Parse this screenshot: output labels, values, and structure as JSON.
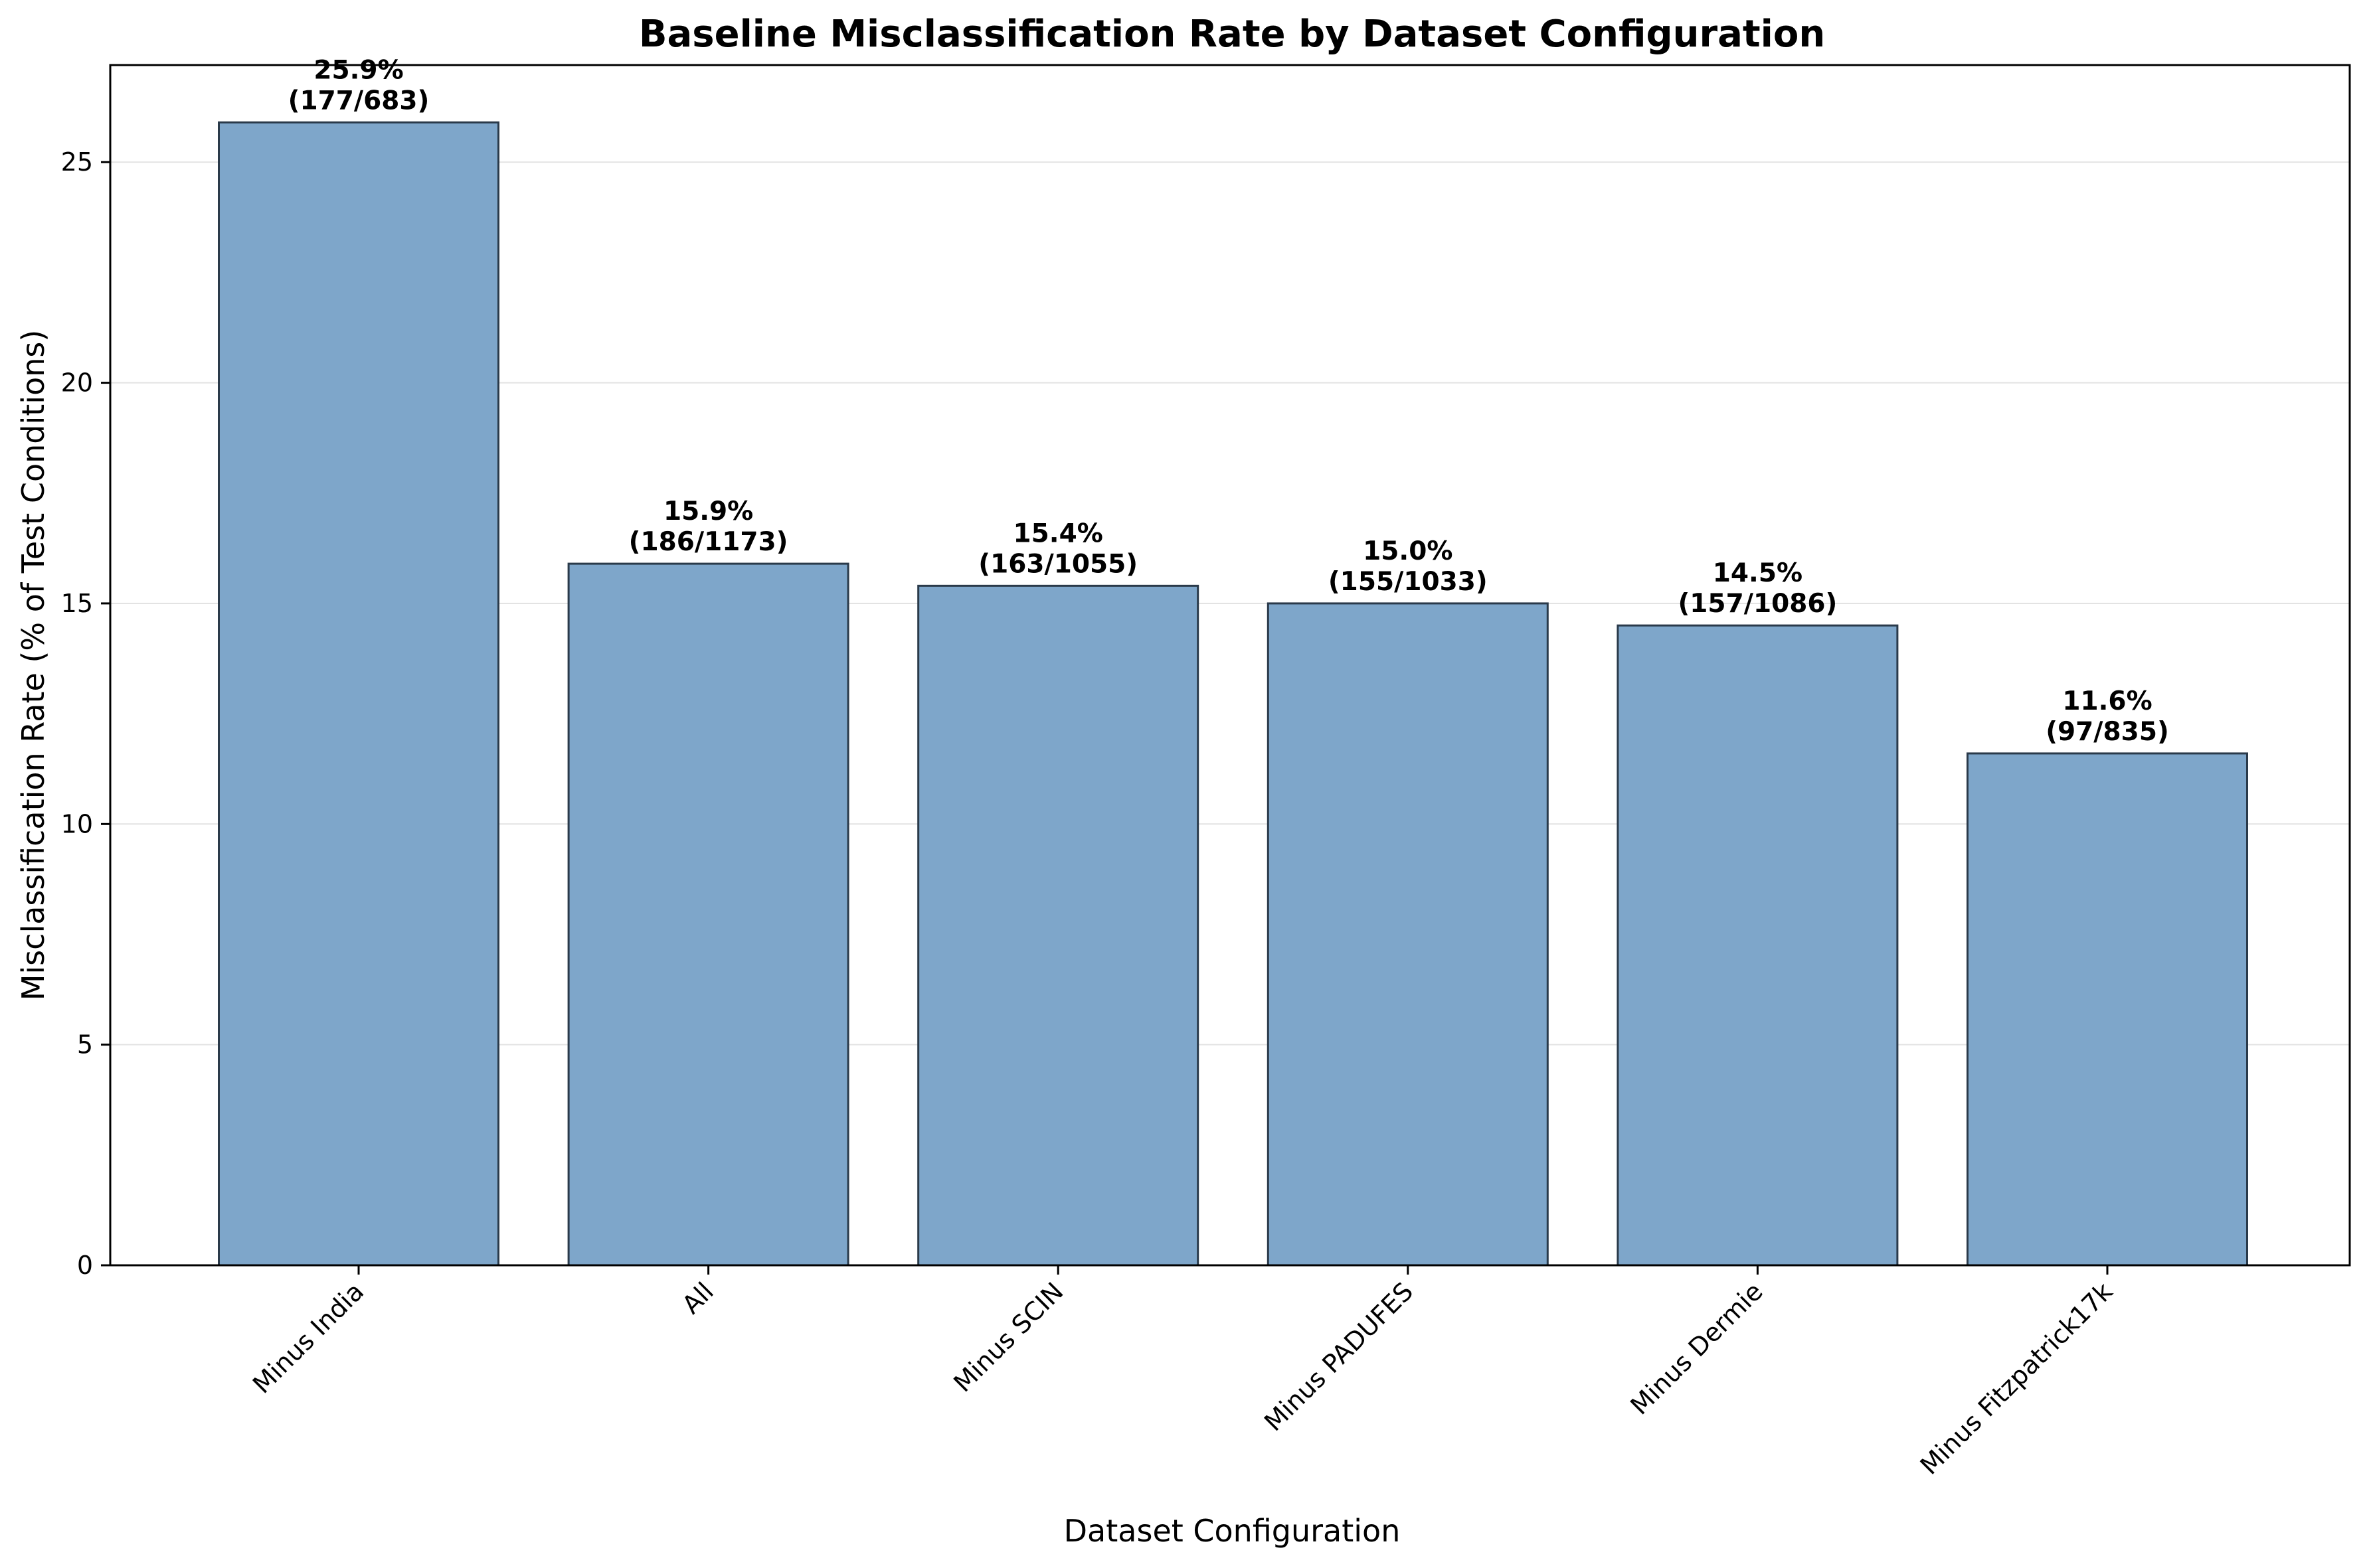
{
  "chart_data": {
    "type": "bar",
    "title": "Baseline Misclassification Rate by Dataset Configuration",
    "xlabel": "Dataset Configuration",
    "ylabel": "Misclassification Rate (% of Test Conditions)",
    "ylim": [
      0,
      27.2
    ],
    "yticks": [
      0,
      5,
      10,
      15,
      20,
      25
    ],
    "grid": "y",
    "categories": [
      "Minus India",
      "All",
      "Minus SCIN",
      "Minus PADUFES",
      "Minus Dermie",
      "Minus Fitzpatrick17k"
    ],
    "values": [
      25.9,
      15.9,
      15.4,
      15.0,
      14.5,
      11.6
    ],
    "value_labels": [
      "25.9%",
      "15.9%",
      "15.4%",
      "15.0%",
      "14.5%",
      "11.6%"
    ],
    "count_labels": [
      "(177/683)",
      "(186/1173)",
      "(163/1055)",
      "(155/1033)",
      "(157/1086)",
      "(97/835)"
    ],
    "colors": {
      "bar": "#7ea6ca",
      "bar_edge": "#2a3a4a",
      "grid": "#e3e3e3",
      "axis": "#000000"
    }
  }
}
